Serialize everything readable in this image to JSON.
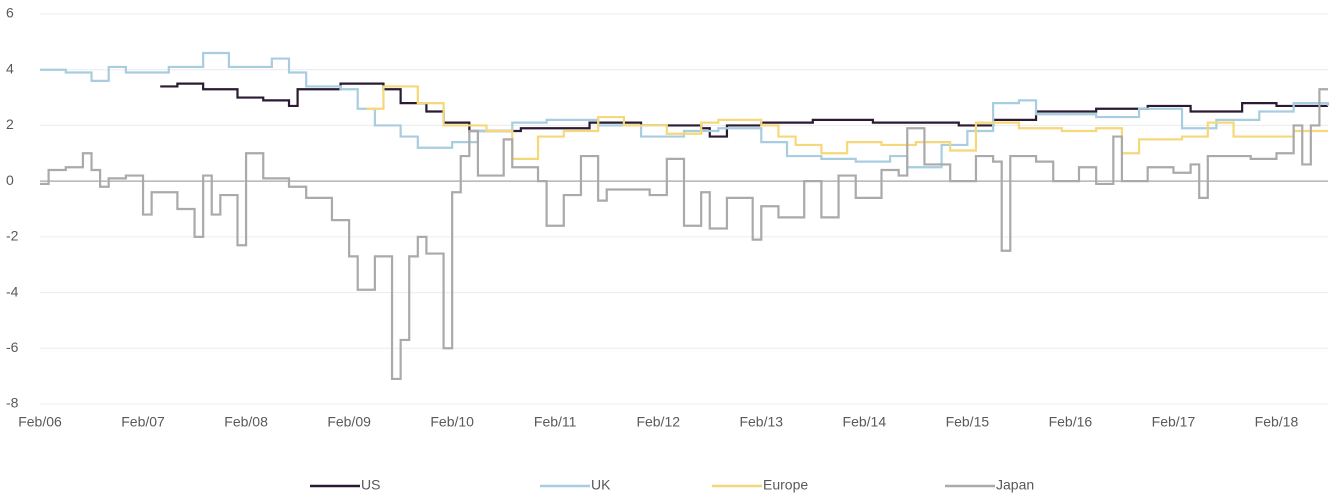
{
  "chart_data": {
    "type": "step",
    "xlim": [
      "2006-02",
      "2018-08"
    ],
    "xticks": [
      {
        "value": "2006-02",
        "label": "Feb/06"
      },
      {
        "value": "2007-02",
        "label": "Feb/07"
      },
      {
        "value": "2008-02",
        "label": "Feb/08"
      },
      {
        "value": "2009-02",
        "label": "Feb/09"
      },
      {
        "value": "2010-02",
        "label": "Feb/10"
      },
      {
        "value": "2011-02",
        "label": "Feb/11"
      },
      {
        "value": "2012-02",
        "label": "Feb/12"
      },
      {
        "value": "2013-02",
        "label": "Feb/13"
      },
      {
        "value": "2014-02",
        "label": "Feb/14"
      },
      {
        "value": "2015-02",
        "label": "Feb/15"
      },
      {
        "value": "2016-02",
        "label": "Feb/16"
      },
      {
        "value": "2017-02",
        "label": "Feb/17"
      },
      {
        "value": "2018-02",
        "label": "Feb/18"
      }
    ],
    "ylim": [
      -8,
      6
    ],
    "yticks": [
      -8,
      -6,
      -4,
      -2,
      0,
      2,
      4,
      6
    ],
    "grid": true,
    "legend": "bottom",
    "series": [
      {
        "name": "US",
        "color": "#2b1a33",
        "x": [
          "2007-04",
          "2007-06",
          "2007-09",
          "2008-01",
          "2008-04",
          "2008-07",
          "2008-08",
          "2009-01",
          "2009-06",
          "2009-08",
          "2009-11",
          "2010-01",
          "2010-04",
          "2010-10",
          "2011-06",
          "2011-12",
          "2012-07",
          "2012-08",
          "2012-10",
          "2013-02",
          "2013-08",
          "2014-03",
          "2015-01",
          "2015-05",
          "2015-10",
          "2016-05",
          "2016-11",
          "2017-04",
          "2017-10",
          "2018-02",
          "2018-08"
        ],
        "values": [
          3.4,
          3.5,
          3.3,
          3.0,
          2.9,
          2.7,
          3.3,
          3.5,
          3.3,
          2.8,
          2.5,
          2.1,
          1.8,
          1.9,
          2.1,
          2.0,
          1.9,
          1.6,
          2.0,
          2.1,
          2.2,
          2.1,
          2.0,
          2.2,
          2.5,
          2.6,
          2.7,
          2.5,
          2.8,
          2.7,
          2.7
        ]
      },
      {
        "name": "UK",
        "color": "#a8cde0",
        "x": [
          "2006-02",
          "2006-05",
          "2006-08",
          "2006-10",
          "2006-12",
          "2007-05",
          "2007-09",
          "2007-12",
          "2008-05",
          "2008-07",
          "2008-09",
          "2009-01",
          "2009-03",
          "2009-05",
          "2009-08",
          "2009-10",
          "2010-02",
          "2010-05",
          "2010-09",
          "2011-01",
          "2011-07",
          "2011-12",
          "2012-05",
          "2012-09",
          "2013-02",
          "2013-05",
          "2013-09",
          "2014-01",
          "2014-05",
          "2014-07",
          "2014-11",
          "2015-02",
          "2015-05",
          "2015-08",
          "2015-10",
          "2016-05",
          "2016-10",
          "2017-03",
          "2017-07",
          "2017-12",
          "2018-04",
          "2018-08"
        ],
        "values": [
          4.0,
          3.9,
          3.6,
          4.1,
          3.9,
          4.1,
          4.6,
          4.1,
          4.4,
          3.9,
          3.4,
          3.3,
          2.6,
          2.0,
          1.6,
          1.2,
          1.4,
          1.8,
          2.1,
          2.2,
          2.0,
          1.6,
          1.8,
          1.9,
          1.4,
          0.9,
          0.8,
          0.7,
          0.9,
          0.5,
          1.3,
          1.8,
          2.8,
          2.9,
          2.4,
          2.3,
          2.6,
          1.9,
          2.2,
          2.5,
          2.8,
          2.7
        ]
      },
      {
        "name": "Europe",
        "color": "#f5d87a",
        "x": [
          "2009-04",
          "2009-06",
          "2009-10",
          "2010-01",
          "2010-06",
          "2010-09",
          "2010-12",
          "2011-03",
          "2011-07",
          "2011-10",
          "2012-03",
          "2012-07",
          "2012-09",
          "2013-02",
          "2013-04",
          "2013-06",
          "2013-09",
          "2013-12",
          "2014-04",
          "2014-08",
          "2014-12",
          "2015-03",
          "2015-08",
          "2016-01",
          "2016-05",
          "2016-08",
          "2016-10",
          "2017-03",
          "2017-06",
          "2017-09",
          "2018-04",
          "2018-08"
        ],
        "values": [
          2.6,
          3.4,
          2.8,
          2.0,
          1.8,
          0.8,
          1.6,
          1.8,
          2.3,
          2.0,
          1.7,
          2.1,
          2.2,
          2.0,
          1.6,
          1.3,
          1.0,
          1.4,
          1.3,
          1.4,
          1.1,
          2.1,
          1.9,
          1.8,
          1.9,
          1.0,
          1.5,
          1.6,
          2.1,
          1.6,
          1.8,
          1.8
        ]
      },
      {
        "name": "Japan",
        "color": "#aaaaaa",
        "x": [
          "2006-02",
          "2006-03",
          "2006-05",
          "2006-07",
          "2006-08",
          "2006-09",
          "2006-10",
          "2006-12",
          "2007-02",
          "2007-03",
          "2007-06",
          "2007-08",
          "2007-09",
          "2007-10",
          "2007-11",
          "2008-01",
          "2008-02",
          "2008-04",
          "2008-07",
          "2008-09",
          "2008-12",
          "2009-02",
          "2009-03",
          "2009-05",
          "2009-07",
          "2009-08",
          "2009-09",
          "2009-10",
          "2009-11",
          "2010-01",
          "2010-02",
          "2010-03",
          "2010-04",
          "2010-05",
          "2010-08",
          "2010-09",
          "2010-12",
          "2011-01",
          "2011-03",
          "2011-05",
          "2011-07",
          "2011-08",
          "2012-01",
          "2012-03",
          "2012-05",
          "2012-07",
          "2012-08",
          "2012-10",
          "2013-01",
          "2013-02",
          "2013-04",
          "2013-07",
          "2013-09",
          "2013-11",
          "2014-01",
          "2014-04",
          "2014-06",
          "2014-07",
          "2014-09",
          "2014-12",
          "2015-03",
          "2015-05",
          "2015-06",
          "2015-07",
          "2015-10",
          "2015-12",
          "2016-03",
          "2016-05",
          "2016-07",
          "2016-08",
          "2016-11",
          "2017-02",
          "2017-04",
          "2017-05",
          "2017-06",
          "2017-09",
          "2017-11",
          "2018-02",
          "2018-04",
          "2018-05",
          "2018-06",
          "2018-07",
          "2018-08"
        ],
        "values": [
          -0.1,
          0.4,
          0.5,
          1.0,
          0.4,
          -0.2,
          0.1,
          0.2,
          -1.2,
          -0.4,
          -1.0,
          -2.0,
          0.2,
          -1.2,
          -0.5,
          -2.3,
          1.0,
          0.1,
          -0.2,
          -0.6,
          -1.4,
          -2.7,
          -3.9,
          -2.7,
          -7.1,
          -5.7,
          -2.7,
          -2.0,
          -2.6,
          -6.0,
          -0.4,
          0.9,
          1.8,
          0.2,
          1.5,
          0.5,
          0.0,
          -1.6,
          -0.5,
          0.9,
          -0.7,
          -0.3,
          -0.5,
          0.8,
          -1.6,
          -0.4,
          -1.7,
          -0.6,
          -2.1,
          -0.9,
          -1.3,
          0.0,
          -1.3,
          0.2,
          -0.6,
          0.4,
          0.2,
          1.9,
          0.6,
          0.0,
          0.9,
          0.7,
          -2.5,
          0.9,
          0.7,
          0.0,
          0.5,
          -0.1,
          1.6,
          0.0,
          0.5,
          0.3,
          0.6,
          -0.6,
          0.9,
          0.9,
          0.8,
          1.0,
          2.0,
          0.6,
          2.0,
          3.3,
          3.3
        ]
      }
    ]
  }
}
